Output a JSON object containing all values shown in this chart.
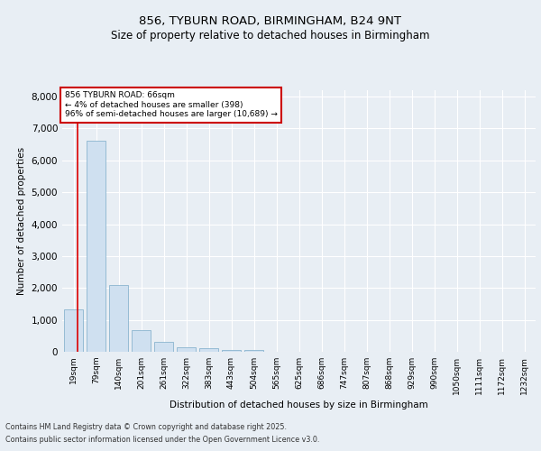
{
  "title1": "856, TYBURN ROAD, BIRMINGHAM, B24 9NT",
  "title2": "Size of property relative to detached houses in Birmingham",
  "xlabel": "Distribution of detached houses by size in Birmingham",
  "ylabel": "Number of detached properties",
  "categories": [
    "19sqm",
    "79sqm",
    "140sqm",
    "201sqm",
    "261sqm",
    "322sqm",
    "383sqm",
    "443sqm",
    "504sqm",
    "565sqm",
    "625sqm",
    "686sqm",
    "747sqm",
    "807sqm",
    "868sqm",
    "929sqm",
    "990sqm",
    "1050sqm",
    "1111sqm",
    "1172sqm",
    "1232sqm"
  ],
  "values": [
    1320,
    6620,
    2090,
    690,
    300,
    150,
    100,
    60,
    50,
    0,
    0,
    0,
    0,
    0,
    0,
    0,
    0,
    0,
    0,
    0,
    0
  ],
  "bar_color": "#cfe0f0",
  "bar_edge_color": "#7aaac8",
  "highlight_line_color": "#dd0000",
  "annotation_title": "856 TYBURN ROAD: 66sqm",
  "annotation_line1": "← 4% of detached houses are smaller (398)",
  "annotation_line2": "96% of semi-detached houses are larger (10,689) →",
  "annotation_box_color": "#ffffff",
  "annotation_box_edge": "#cc0000",
  "ylim": [
    0,
    8200
  ],
  "yticks": [
    0,
    1000,
    2000,
    3000,
    4000,
    5000,
    6000,
    7000,
    8000
  ],
  "bg_color": "#e8eef4",
  "plot_bg_color": "#e8eef4",
  "grid_color": "#ffffff",
  "footer1": "Contains HM Land Registry data © Crown copyright and database right 2025.",
  "footer2": "Contains public sector information licensed under the Open Government Licence v3.0."
}
